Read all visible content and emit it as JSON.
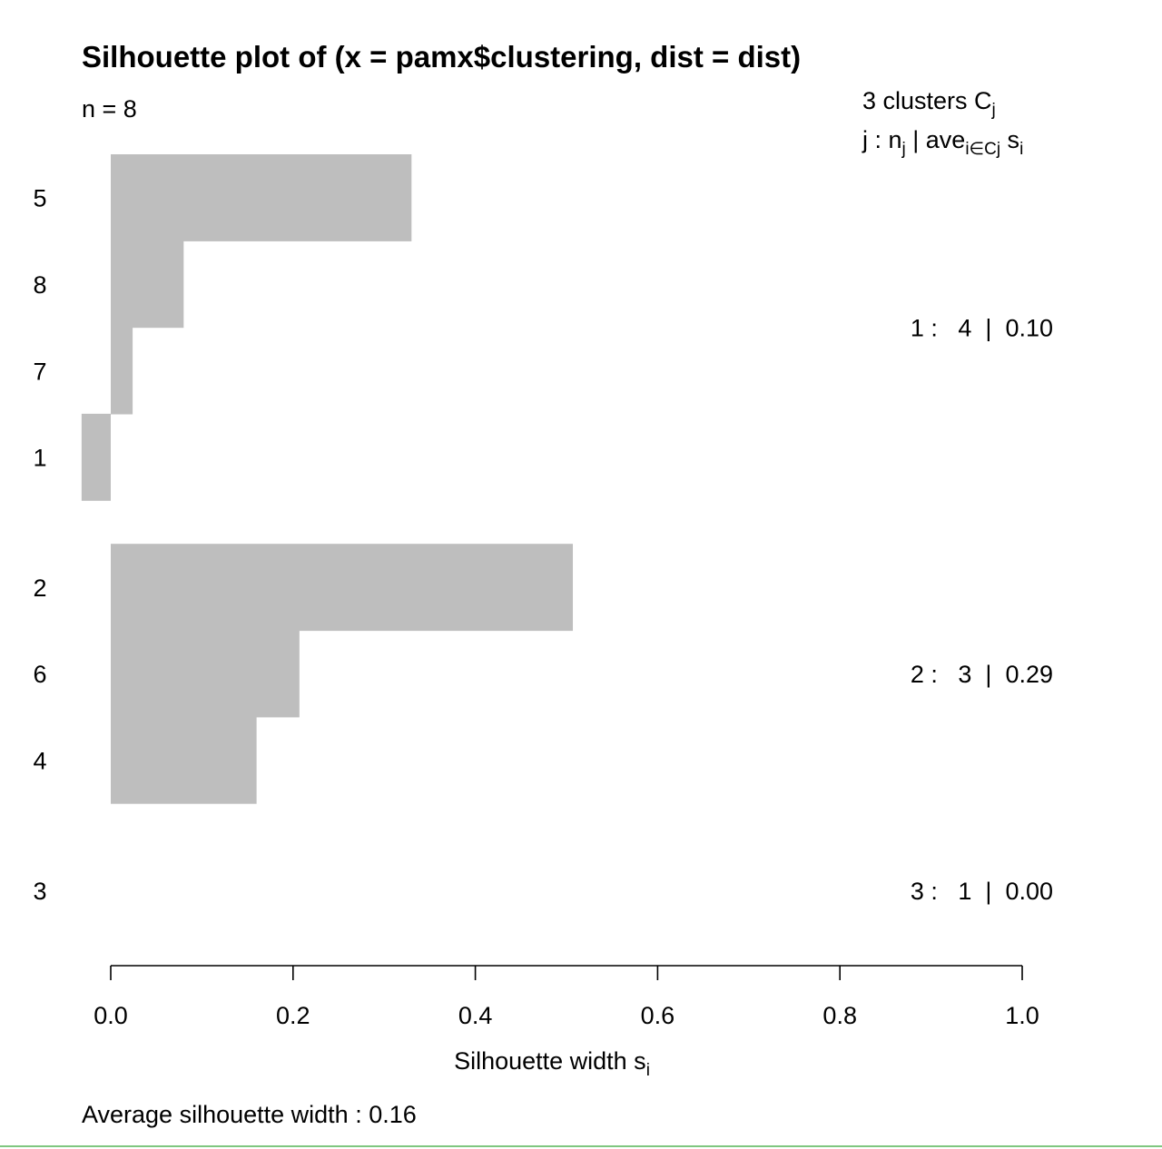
{
  "chart_data": {
    "type": "bar",
    "orientation": "horizontal",
    "title": "Silhouette plot of (x = pamx$clustering, dist = dist)",
    "n_label": "n = 8",
    "legend_header": {
      "line1": {
        "main": "3  clusters  C",
        "sub": "j"
      },
      "line2": {
        "a": "j :  n",
        "a_sub": "j",
        "b": " | ave",
        "b_sub": "i∈Cj",
        "c": "  s",
        "c_sub": "i"
      }
    },
    "clusters": [
      {
        "summary": "1 :   4  |  0.10",
        "items": [
          {
            "label": "5",
            "value": 0.33
          },
          {
            "label": "8",
            "value": 0.08
          },
          {
            "label": "7",
            "value": 0.024
          },
          {
            "label": "1",
            "value": -0.032
          }
        ]
      },
      {
        "summary": "2 :   3  |  0.29",
        "items": [
          {
            "label": "2",
            "value": 0.507
          },
          {
            "label": "6",
            "value": 0.207
          },
          {
            "label": "4",
            "value": 0.16
          }
        ]
      },
      {
        "summary": "3 :   1  |  0.00",
        "items": [
          {
            "label": "3",
            "value": 0.0
          }
        ]
      }
    ],
    "xaxis": {
      "ticks": [
        0.0,
        0.2,
        0.4,
        0.6,
        0.8,
        1.0
      ],
      "tick_labels": [
        "0.0",
        "0.2",
        "0.4",
        "0.6",
        "0.8",
        "1.0"
      ],
      "label_main": "Silhouette width s",
      "label_sub": "i"
    },
    "xlim": [
      0.0,
      1.0
    ],
    "bar_color": "#bebebe",
    "footer": "Average silhouette width :  0.16"
  }
}
